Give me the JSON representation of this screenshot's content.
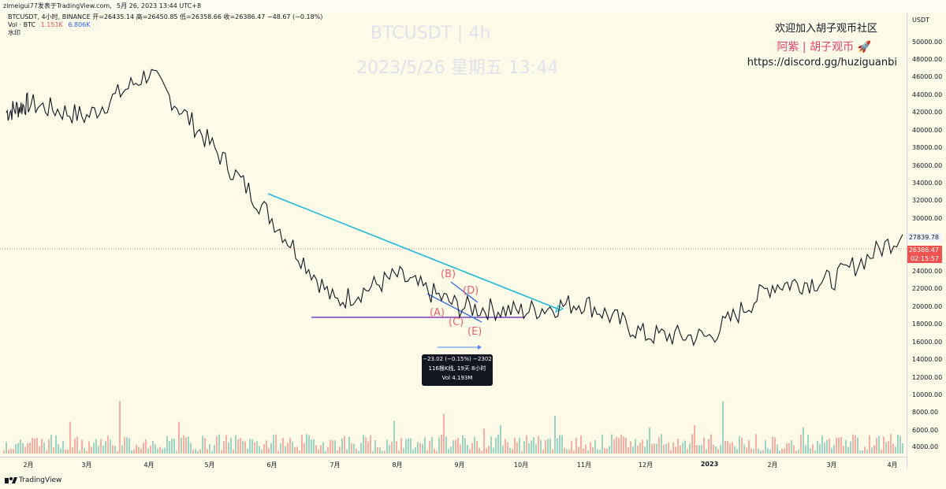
{
  "header": {
    "publisher": "zimeigui77发表于TradingView.com,",
    "date": "5月 26, 2023 13:44 UTC+8"
  },
  "legend": {
    "symbol_line": "BTCUSDT, 4小时, BINANCE",
    "open": "开=26435.14",
    "high": "高=26450.85",
    "low": "低=26358.66",
    "close": "收=26386.47",
    "change": "−48.67 (−0.18%)",
    "vol_label": "Vol · BTC",
    "vol_a": "1.151K",
    "vol_b": "6.806K",
    "watermark_label": "水印",
    "up_color": "#26a69a",
    "down_color": "#ef5350"
  },
  "watermark": {
    "line1": "BTCUSDT | 4h",
    "line2": "2023/5/26 星期五 13:44"
  },
  "promo": {
    "line1": "欢迎加入胡子观币社区",
    "line2": "阿紫 | 胡子观币",
    "line2_icon": "rocket-icon",
    "line3": "https://discord.gg/huziguanbi",
    "accent": "#e0446b"
  },
  "price_axis": {
    "currency": "USDT",
    "ticks": [
      "50000.00",
      "48000.00",
      "46000.00",
      "44000.00",
      "42000.00",
      "40000.00",
      "38000.00",
      "36000.00",
      "34000.00",
      "32000.00",
      "30000.00",
      "24000.00",
      "22000.00",
      "20000.00",
      "18000.00",
      "16000.00",
      "14000.00",
      "12000.00",
      "10000.00",
      "8000.00",
      "6000.00",
      "4000.00"
    ],
    "tags": [
      {
        "label": "27839.78",
        "value": 27839.78,
        "color": "#f0f3fa",
        "text": "#131722"
      },
      {
        "label": "26386.47",
        "value": 26386.47,
        "color": "#ef5350",
        "text": "#ffffff"
      },
      {
        "label": "02:15:57",
        "color": "#ef5350",
        "text": "#ffffff"
      }
    ]
  },
  "time_axis": {
    "ticks": [
      "2月",
      "3月",
      "4月",
      "5月",
      "6月",
      "7月",
      "8月",
      "9月",
      "10月",
      "11月",
      "12月",
      "2023",
      "2月",
      "3月",
      "4月"
    ]
  },
  "annotations": {
    "waves": [
      "(A)",
      "(B)",
      "(C)",
      "(D)",
      "(E)"
    ],
    "tooltip": {
      "line1": "−23.02 (−0.15%) −2302",
      "line2": "116根K线, 19天 8小时",
      "line3": "Vol 4.193M"
    }
  },
  "footer": {
    "brand": "TradingView",
    "brand_icon": "tradingview-logo-icon"
  },
  "chart_data": {
    "type": "line",
    "title": "BTCUSDT | 4h",
    "xlabel": "",
    "ylabel": "",
    "ylim": [
      14000,
      50000
    ],
    "x": [
      "2022-01",
      "2022-02",
      "2022-03",
      "2022-04",
      "2022-05",
      "2022-06",
      "2022-07",
      "2022-08",
      "2022-09",
      "2022-10",
      "2022-11",
      "2022-12",
      "2023-01",
      "2023-02",
      "2023-03",
      "2023-04"
    ],
    "series": [
      {
        "values": [
          42000,
          43000,
          41500,
          46500,
          38500,
          30000,
          20500,
          23500,
          20000,
          19500,
          20500,
          16800,
          16600,
          22500,
          23000,
          28200
        ]
      }
    ],
    "volume_ylim": [
      0,
      12000
    ],
    "price_range": {
      "low": 15500,
      "high": 48200
    }
  }
}
